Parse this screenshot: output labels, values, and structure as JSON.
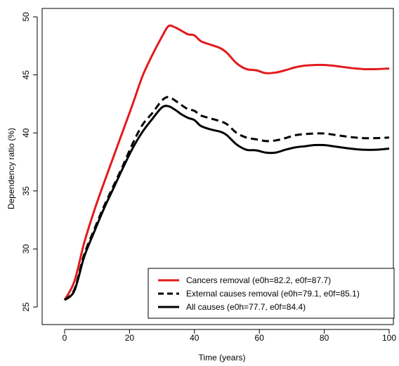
{
  "chart_data": {
    "type": "line",
    "title": "",
    "xlabel": "Time (years)",
    "ylabel": "Dependency ratio (%)",
    "xlim": [
      0,
      100
    ],
    "ylim": [
      25,
      50
    ],
    "xticks": [
      "0",
      "20",
      "40",
      "60",
      "80",
      "100"
    ],
    "yticks": [
      "25",
      "30",
      "35",
      "40",
      "45",
      "50"
    ],
    "grid": false,
    "legend_position": "bottom-right",
    "x": [
      0,
      3,
      6,
      9,
      12,
      15,
      18,
      21,
      24,
      27,
      30,
      32,
      34,
      36,
      38,
      40,
      42,
      45,
      48,
      50,
      53,
      56,
      59,
      62,
      65,
      68,
      71,
      74,
      77,
      80,
      84,
      88,
      92,
      96,
      100
    ],
    "series": [
      {
        "name": "Cancers removal (e0h=82.2, e0f=87.7)",
        "color": "#e31a1c",
        "dash": "solid",
        "values": [
          25.6,
          27.2,
          30.5,
          33.2,
          35.6,
          37.9,
          40.2,
          42.5,
          44.9,
          46.7,
          48.3,
          49.2,
          49.1,
          48.8,
          48.5,
          48.4,
          47.9,
          47.6,
          47.3,
          46.9,
          46.0,
          45.5,
          45.4,
          45.15,
          45.2,
          45.4,
          45.65,
          45.8,
          45.85,
          45.85,
          45.75,
          45.6,
          45.5,
          45.5,
          45.55
        ]
      },
      {
        "name": "External causes removal (e0h=79.1, e0f=85.1)",
        "color": "#000000",
        "dash": "dashed",
        "values": [
          25.6,
          26.5,
          29.5,
          31.6,
          33.6,
          35.4,
          37.2,
          39.1,
          40.7,
          41.7,
          42.8,
          43.1,
          42.8,
          42.4,
          42.05,
          41.9,
          41.5,
          41.25,
          41.0,
          40.75,
          40.0,
          39.6,
          39.45,
          39.3,
          39.35,
          39.55,
          39.8,
          39.9,
          39.95,
          39.95,
          39.8,
          39.65,
          39.55,
          39.55,
          39.6
        ]
      },
      {
        "name": "All causes (e0h=77.7, e0f=84.4)",
        "color": "#000000",
        "dash": "solid",
        "values": [
          25.6,
          26.4,
          29.3,
          31.4,
          33.4,
          35.2,
          37.0,
          38.7,
          40.1,
          41.2,
          42.2,
          42.3,
          42.0,
          41.6,
          41.3,
          41.1,
          40.6,
          40.3,
          40.1,
          39.8,
          39.0,
          38.55,
          38.5,
          38.3,
          38.3,
          38.55,
          38.75,
          38.85,
          38.95,
          38.95,
          38.8,
          38.65,
          38.55,
          38.55,
          38.65
        ]
      }
    ]
  }
}
